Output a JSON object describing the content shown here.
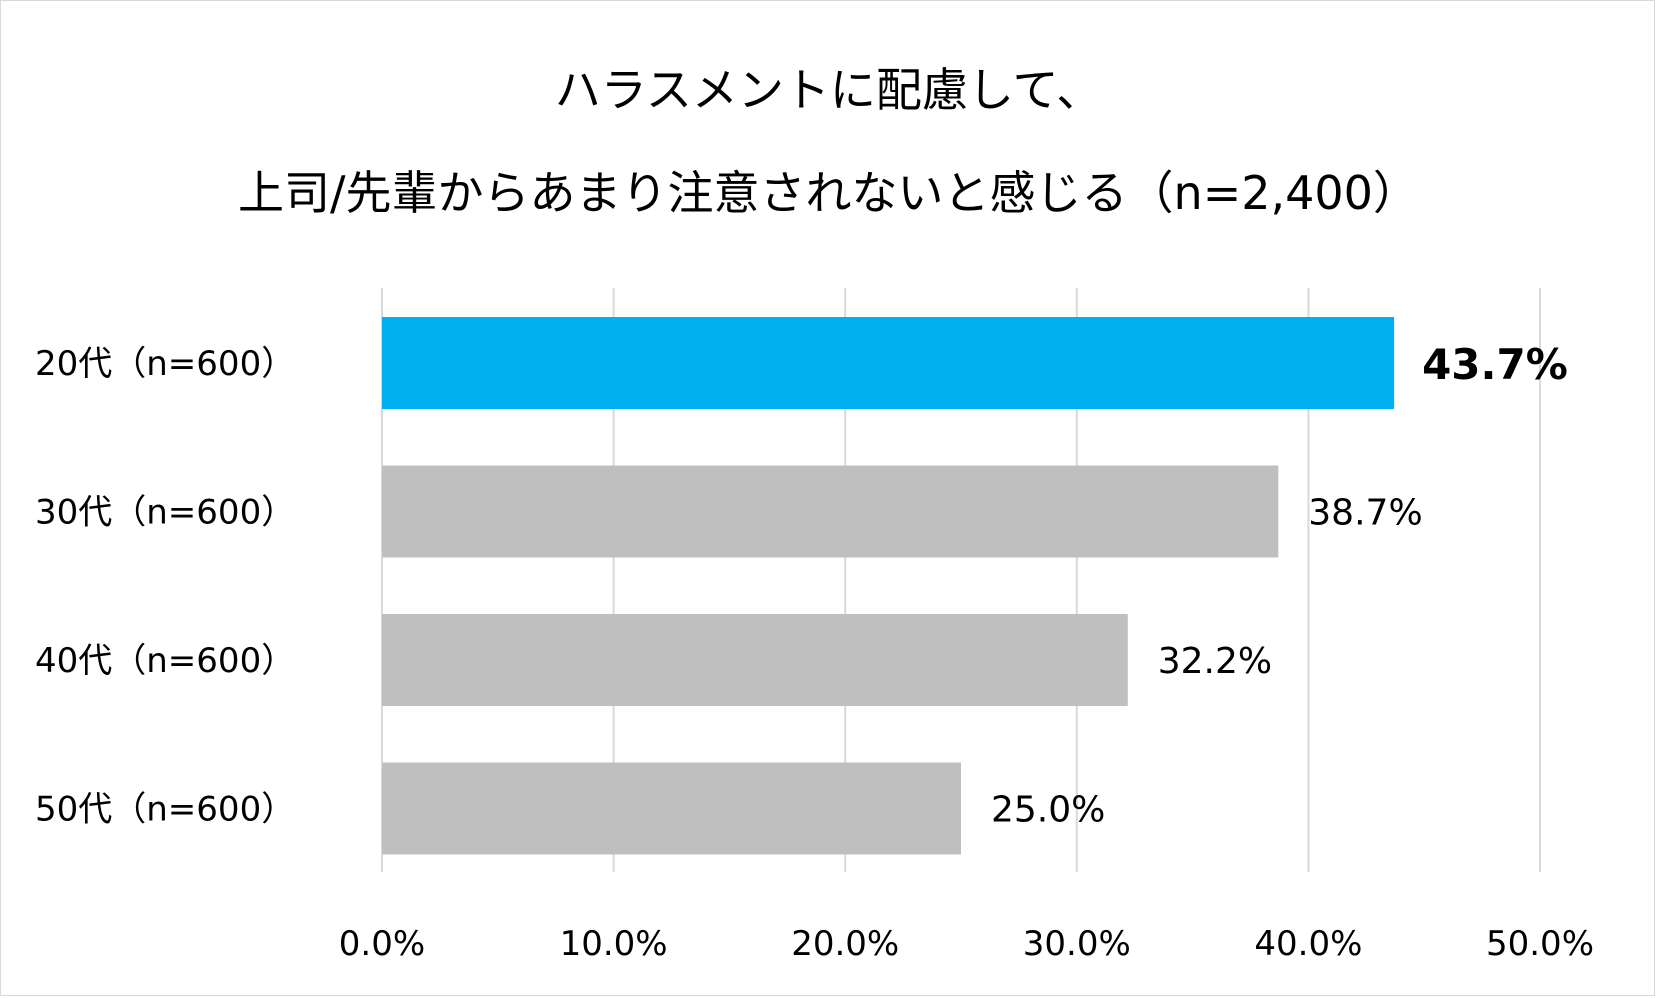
{
  "chart_data": {
    "type": "bar",
    "orientation": "horizontal",
    "title": "ハラスメントに配慮して、",
    "subtitle": "上司/先輩からあまり注意されないと感じる（n=2,400）",
    "categories": [
      "20代（n=600）",
      "30代（n=600）",
      "40代（n=600）",
      "50代（n=600）"
    ],
    "values": [
      43.7,
      38.7,
      32.2,
      25.0
    ],
    "value_labels": [
      "43.7%",
      "38.7%",
      "32.2%",
      "25.0%"
    ],
    "highlight_index": 0,
    "xlim": [
      0,
      50
    ],
    "x_ticks": [
      0,
      10,
      20,
      30,
      40,
      50
    ],
    "x_tick_labels": [
      "0.0%",
      "10.0%",
      "20.0%",
      "30.0%",
      "40.0%",
      "50.0%"
    ],
    "grid": "vertical",
    "legend": "none",
    "colors": {
      "highlight": "#00B0F0",
      "default": "#BFBFBF",
      "grid": "#D9D9D9"
    }
  }
}
